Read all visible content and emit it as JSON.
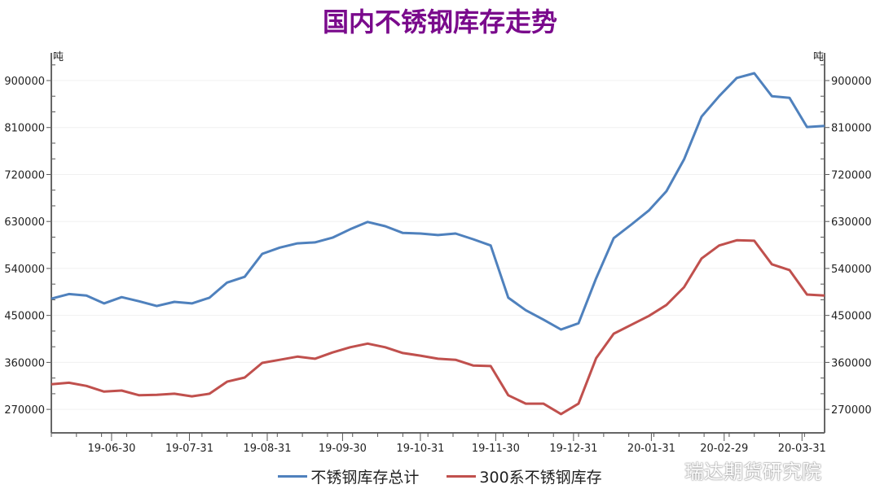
{
  "chart_data": {
    "type": "line",
    "title": "国内不锈钢库存走势",
    "ylabel_left": "吨",
    "ylabel_right": "吨",
    "ylim": [
      225000,
      953000
    ],
    "yticks": [
      270000,
      360000,
      450000,
      540000,
      630000,
      720000,
      810000,
      900000
    ],
    "ytick_labels": [
      "270000",
      "360000",
      "450000",
      "540000",
      "630000",
      "720000",
      "810000",
      "900000"
    ],
    "xtick_labels": [
      "19-06-30",
      "19-07-31",
      "19-08-31",
      "19-09-30",
      "19-10-31",
      "19-11-30",
      "19-12-31",
      "20-01-31",
      "20-02-29",
      "20-03-31"
    ],
    "xtick_dates": [
      "2019-06-30",
      "2019-07-31",
      "2019-08-31",
      "2019-09-30",
      "2019-10-31",
      "2019-11-30",
      "2019-12-31",
      "2020-01-31",
      "2020-02-29",
      "2020-03-31"
    ],
    "x_start": "2019-06-06",
    "x_step_days": 7,
    "grid": true,
    "legend": "bottom",
    "series": [
      {
        "name": "不锈钢库存总计",
        "color": "#4f81bd",
        "values": [
          482000,
          491000,
          488000,
          473000,
          485000,
          477000,
          468000,
          476000,
          473000,
          484000,
          513000,
          524000,
          568000,
          580000,
          588000,
          590000,
          599000,
          615000,
          629000,
          621000,
          608000,
          607000,
          604000,
          607000,
          596000,
          584000,
          484000,
          460000,
          442000,
          423000,
          435000,
          521000,
          598000,
          624000,
          651000,
          688000,
          749000,
          831000,
          870000,
          905000,
          914000,
          870000,
          867000,
          811000,
          813000
        ]
      },
      {
        "name": "300系不锈钢库存",
        "color": "#c0504d",
        "values": [
          318000,
          321000,
          315000,
          304000,
          306000,
          297000,
          298000,
          300000,
          295000,
          300000,
          323000,
          331000,
          359000,
          365000,
          371000,
          367000,
          379000,
          389000,
          396000,
          389000,
          378000,
          373000,
          367000,
          365000,
          354000,
          353000,
          297000,
          281000,
          281000,
          261000,
          281000,
          368000,
          415000,
          432000,
          449000,
          470000,
          504000,
          559000,
          584000,
          594000,
          593000,
          548000,
          537000,
          490000,
          488000
        ]
      }
    ]
  },
  "watermark": "瑞达期货研究院"
}
